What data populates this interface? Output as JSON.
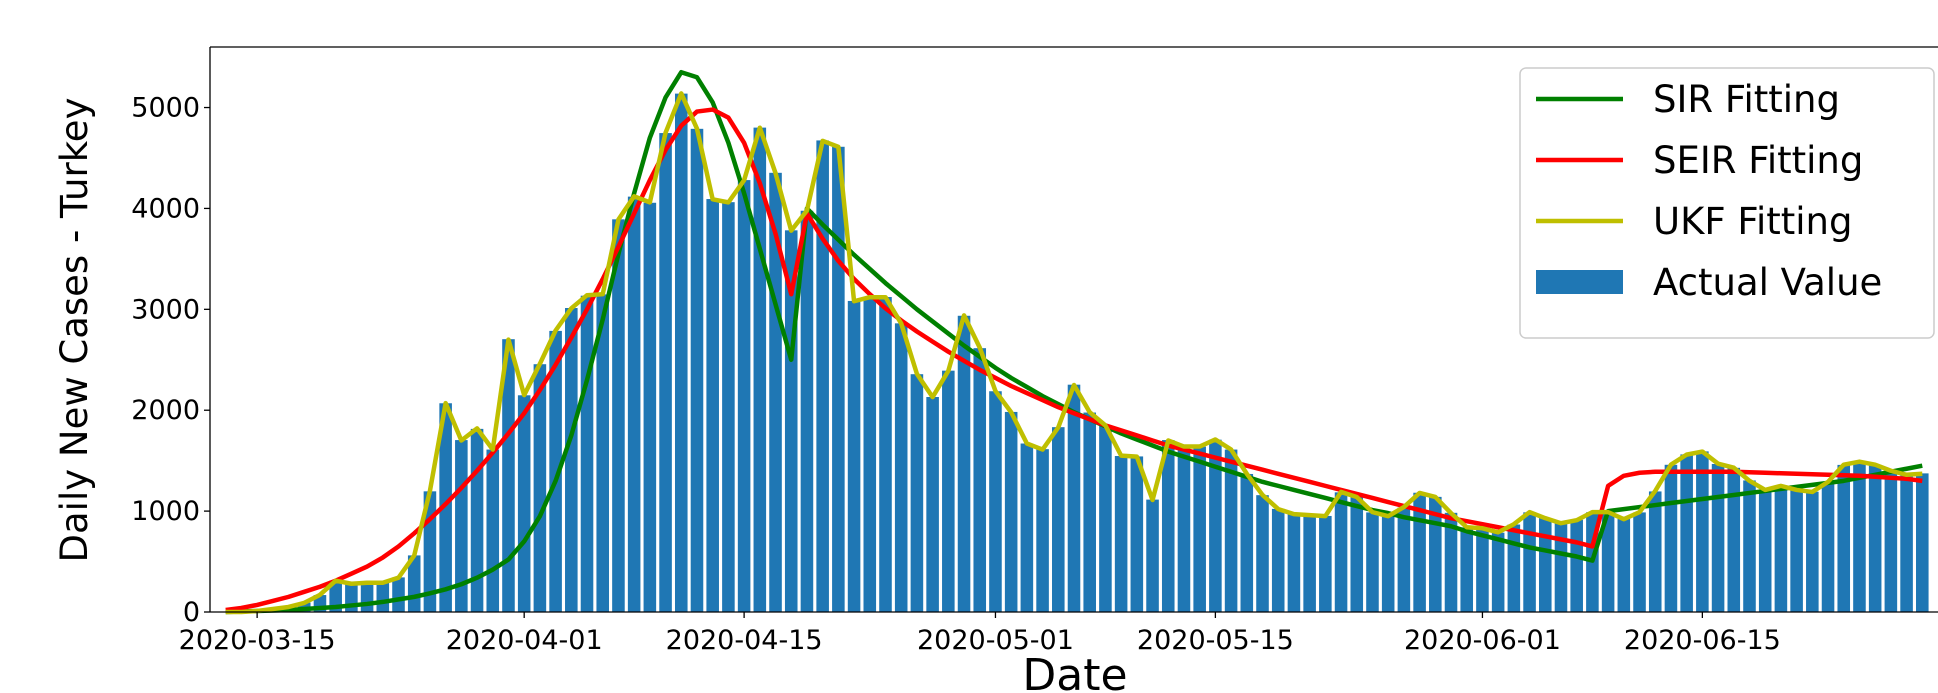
{
  "chart_data": {
    "type": "bar",
    "x_label": "Date",
    "y_label": "Daily New Cases - Turkey",
    "xlim": [
      "2020-03-12",
      "2020-06-30"
    ],
    "xticks": [
      "2020-03-15",
      "2020-04-01",
      "2020-04-15",
      "2020-05-01",
      "2020-05-15",
      "2020-06-01",
      "2020-06-15"
    ],
    "ylim": [
      0,
      5600
    ],
    "yticks": [
      0,
      1000,
      2000,
      3000,
      4000,
      5000
    ],
    "legend": "upper right",
    "x": [
      "2020-03-13",
      "2020-03-14",
      "2020-03-15",
      "2020-03-16",
      "2020-03-17",
      "2020-03-18",
      "2020-03-19",
      "2020-03-20",
      "2020-03-21",
      "2020-03-22",
      "2020-03-23",
      "2020-03-24",
      "2020-03-25",
      "2020-03-26",
      "2020-03-27",
      "2020-03-28",
      "2020-03-29",
      "2020-03-30",
      "2020-03-31",
      "2020-04-01",
      "2020-04-02",
      "2020-04-03",
      "2020-04-04",
      "2020-04-05",
      "2020-04-06",
      "2020-04-07",
      "2020-04-08",
      "2020-04-09",
      "2020-04-10",
      "2020-04-11",
      "2020-04-12",
      "2020-04-13",
      "2020-04-14",
      "2020-04-15",
      "2020-04-16",
      "2020-04-17",
      "2020-04-18",
      "2020-04-19",
      "2020-04-20",
      "2020-04-21",
      "2020-04-22",
      "2020-04-23",
      "2020-04-24",
      "2020-04-25",
      "2020-04-26",
      "2020-04-27",
      "2020-04-28",
      "2020-04-29",
      "2020-04-30",
      "2020-05-01",
      "2020-05-02",
      "2020-05-03",
      "2020-05-04",
      "2020-05-05",
      "2020-05-06",
      "2020-05-07",
      "2020-05-08",
      "2020-05-09",
      "2020-05-10",
      "2020-05-11",
      "2020-05-12",
      "2020-05-13",
      "2020-05-14",
      "2020-05-15",
      "2020-05-16",
      "2020-05-17",
      "2020-05-18",
      "2020-05-19",
      "2020-05-20",
      "2020-05-21",
      "2020-05-22",
      "2020-05-23",
      "2020-05-24",
      "2020-05-25",
      "2020-05-26",
      "2020-05-27",
      "2020-05-28",
      "2020-05-29",
      "2020-05-30",
      "2020-05-31",
      "2020-06-01",
      "2020-06-02",
      "2020-06-03",
      "2020-06-04",
      "2020-06-05",
      "2020-06-06",
      "2020-06-07",
      "2020-06-08",
      "2020-06-09",
      "2020-06-10",
      "2020-06-11",
      "2020-06-12",
      "2020-06-13",
      "2020-06-14",
      "2020-06-15",
      "2020-06-16",
      "2020-06-17",
      "2020-06-18",
      "2020-06-19",
      "2020-06-20",
      "2020-06-21",
      "2020-06-22",
      "2020-06-23",
      "2020-06-24",
      "2020-06-25",
      "2020-06-26",
      "2020-06-27",
      "2020-06-28",
      "2020-06-29"
    ],
    "series": [
      {
        "name": "SIR Fitting",
        "type": "line",
        "color": "#008000",
        "values": [
          0,
          5,
          10,
          15,
          20,
          30,
          40,
          50,
          65,
          80,
          100,
          125,
          150,
          185,
          225,
          275,
          340,
          420,
          520,
          700,
          950,
          1300,
          1750,
          2300,
          2900,
          3550,
          4150,
          4700,
          5100,
          5350,
          5300,
          5050,
          4650,
          4150,
          3600,
          3050,
          2500,
          4000,
          3840,
          3690,
          3540,
          3400,
          3260,
          3130,
          3000,
          2880,
          2760,
          2640,
          2530,
          2420,
          2320,
          2230,
          2140,
          2060,
          1980,
          1910,
          1840,
          1770,
          1710,
          1650,
          1590,
          1540,
          1490,
          1440,
          1390,
          1340,
          1290,
          1250,
          1210,
          1170,
          1130,
          1090,
          1050,
          1010,
          980,
          940,
          910,
          880,
          850,
          800,
          760,
          720,
          680,
          640,
          610,
          580,
          550,
          510,
          1000,
          1020,
          1040,
          1060,
          1080,
          1100,
          1120,
          1140,
          1160,
          1180,
          1200,
          1220,
          1240,
          1260,
          1280,
          1300,
          1330,
          1360,
          1390,
          1420,
          1450
        ]
      },
      {
        "name": "SEIR Fitting",
        "type": "line",
        "color": "#ff0000",
        "values": [
          20,
          40,
          70,
          110,
          150,
          200,
          250,
          310,
          380,
          450,
          540,
          650,
          780,
          920,
          1070,
          1230,
          1400,
          1580,
          1770,
          1970,
          2200,
          2450,
          2720,
          3000,
          3300,
          3620,
          3950,
          4280,
          4580,
          4820,
          4960,
          4980,
          4900,
          4650,
          4250,
          3750,
          3150,
          3950,
          3700,
          3480,
          3300,
          3150,
          3010,
          2890,
          2780,
          2680,
          2580,
          2490,
          2400,
          2320,
          2240,
          2170,
          2100,
          2030,
          1970,
          1910,
          1850,
          1800,
          1750,
          1700,
          1650,
          1610,
          1570,
          1530,
          1490,
          1450,
          1410,
          1370,
          1330,
          1290,
          1250,
          1210,
          1170,
          1130,
          1090,
          1050,
          1010,
          970,
          930,
          900,
          870,
          840,
          810,
          780,
          750,
          720,
          690,
          650,
          1250,
          1350,
          1380,
          1390,
          1390,
          1390,
          1390,
          1390,
          1390,
          1385,
          1380,
          1375,
          1370,
          1365,
          1360,
          1355,
          1350,
          1340,
          1330,
          1320,
          1300
        ]
      },
      {
        "name": "UKF Fitting",
        "type": "line",
        "color": "#bfbf00",
        "values": [
          0,
          0,
          10,
          30,
          50,
          90,
          170,
          310,
          280,
          290,
          290,
          340,
          560,
          1200,
          2070,
          1700,
          1820,
          1610,
          2700,
          2150,
          2460,
          2790,
          3010,
          3140,
          3150,
          3890,
          4120,
          4060,
          4750,
          5140,
          4790,
          4090,
          4060,
          4280,
          4800,
          4350,
          3780,
          3980,
          4670,
          4610,
          3080,
          3120,
          3120,
          2860,
          2360,
          2130,
          2390,
          2940,
          2620,
          2190,
          1980,
          1670,
          1610,
          1830,
          2250,
          1980,
          1850,
          1550,
          1540,
          1110,
          1700,
          1640,
          1640,
          1710,
          1610,
          1370,
          1160,
          1020,
          970,
          960,
          950,
          1190,
          1140,
          990,
          950,
          1040,
          1180,
          1140,
          980,
          840,
          830,
          790,
          870,
          990,
          930,
          880,
          910,
          990,
          990,
          920,
          990,
          1200,
          1460,
          1560,
          1590,
          1470,
          1430,
          1300,
          1210,
          1250,
          1210,
          1190,
          1290,
          1460,
          1490,
          1460,
          1400,
          1360,
          1370
        ]
      },
      {
        "name": "Actual Value",
        "type": "bar",
        "color": "#1f77b4",
        "values": [
          4,
          1,
          12,
          29,
          51,
          93,
          168,
          311,
          277,
          289,
          293,
          343,
          561,
          1196,
          2069,
          1704,
          1815,
          1610,
          2704,
          2148,
          2456,
          2786,
          3013,
          3135,
          3148,
          3892,
          4117,
          4056,
          4747,
          5138,
          4789,
          4093,
          4062,
          4281,
          4801,
          4353,
          3783,
          3977,
          4674,
          4611,
          3083,
          3116,
          3122,
          2861,
          2357,
          2131,
          2392,
          2936,
          2615,
          2188,
          1983,
          1670,
          1614,
          1832,
          2253,
          1977,
          1848,
          1546,
          1542,
          1114,
          1704,
          1635,
          1639,
          1708,
          1610,
          1368,
          1158,
          1022,
          972,
          961,
          952,
          1186,
          1141,
          987,
          948,
          1035,
          1182,
          1141,
          983,
          839,
          827,
          786,
          867,
          988,
          930,
          878,
          914,
          989,
          993,
          922,
          987,
          1195,
          1459,
          1562,
          1592,
          1467,
          1429,
          1304,
          1214,
          1248,
          1212,
          1192,
          1293,
          1458,
          1492,
          1458,
          1396,
          1356,
          1374
        ]
      }
    ]
  }
}
